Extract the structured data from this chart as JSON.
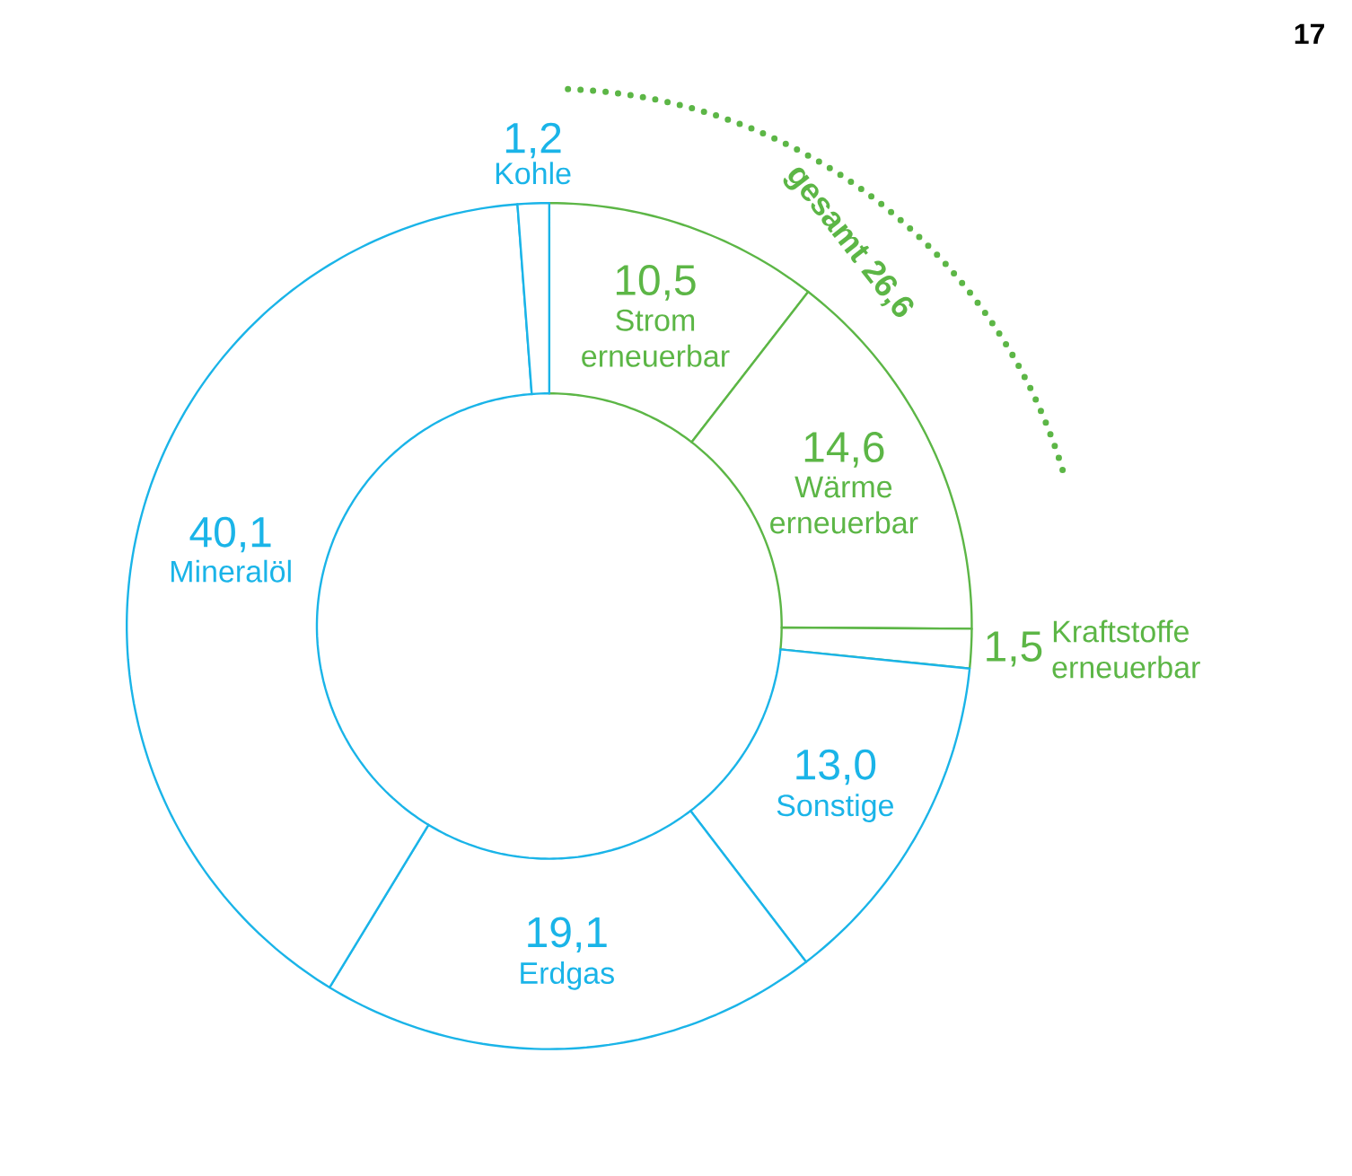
{
  "chart_data": {
    "type": "donut",
    "categories": [
      "Strom erneuerbar",
      "Wärme erneuerbar",
      "Kraftstoffe erneuerbar",
      "Sonstige",
      "Erdgas",
      "Mineralöl",
      "Kohle"
    ],
    "values": [
      10.5,
      14.6,
      1.5,
      13.0,
      19.1,
      40.1,
      1.2
    ],
    "value_labels": [
      "10,5",
      "14,6",
      "1,5",
      "13,0",
      "19,1",
      "40,1",
      "1,2"
    ],
    "colors": [
      "#5cb646",
      "#5cb646",
      "#5cb646",
      "#1ab4e8",
      "#1ab4e8",
      "#1ab4e8",
      "#1ab4e8"
    ],
    "annotations": [
      "gesamt 26,6",
      "17"
    ]
  }
}
